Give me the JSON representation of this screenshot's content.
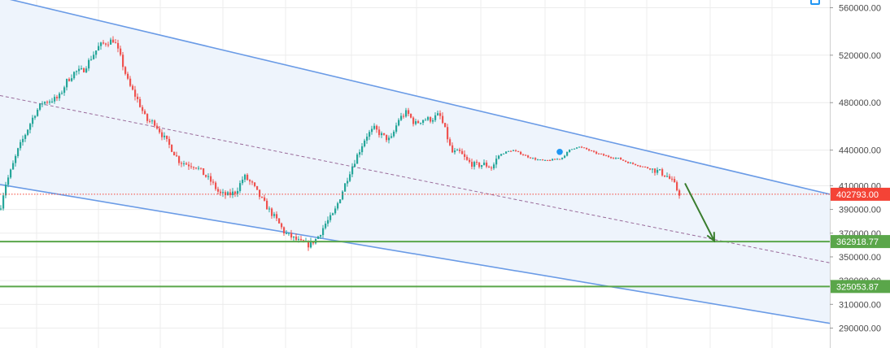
{
  "chart_data": {
    "type": "candlestick",
    "title": "",
    "xlabel": "",
    "ylabel": "",
    "ylim": [
      280000,
      575000
    ],
    "y_ticks": [
      {
        "value": 560000,
        "label": "560000.00"
      },
      {
        "value": 520000,
        "label": "520000.00"
      },
      {
        "value": 480000,
        "label": "480000.00"
      },
      {
        "value": 440000,
        "label": "440000.00"
      },
      {
        "value": 410000,
        "label": "410000.00"
      },
      {
        "value": 390000,
        "label": "390000.00"
      },
      {
        "value": 370000,
        "label": "370000.00"
      },
      {
        "value": 350000,
        "label": "350000.00"
      },
      {
        "value": 330000,
        "label": "330000.00"
      },
      {
        "value": 310000,
        "label": "310000.00"
      },
      {
        "value": 290000,
        "label": "290000.00"
      }
    ],
    "grid": true,
    "colors": {
      "up": "#26a69a",
      "down": "#ef5350",
      "channel": "#6a9be6",
      "channel_fill": "#eef4fc",
      "midline": "#9a6b9a",
      "support": "#5aa64a",
      "arrow": "#3a7d2e",
      "current": "#f44336",
      "marker": "#2196f3"
    },
    "close_path": [
      [
        0,
        390000
      ],
      [
        6,
        410000
      ],
      [
        12,
        420000
      ],
      [
        22,
        440000
      ],
      [
        32,
        455000
      ],
      [
        42,
        470000
      ],
      [
        52,
        480000
      ],
      [
        62,
        482000
      ],
      [
        72,
        484000
      ],
      [
        82,
        498000
      ],
      [
        92,
        506000
      ],
      [
        102,
        507000
      ],
      [
        112,
        518000
      ],
      [
        122,
        528000
      ],
      [
        132,
        531000
      ],
      [
        140,
        533000
      ],
      [
        148,
        518000
      ],
      [
        158,
        496000
      ],
      [
        170,
        481000
      ],
      [
        180,
        465000
      ],
      [
        190,
        463000
      ],
      [
        200,
        452000
      ],
      [
        210,
        442000
      ],
      [
        220,
        431000
      ],
      [
        230,
        428000
      ],
      [
        240,
        427000
      ],
      [
        250,
        420000
      ],
      [
        260,
        413000
      ],
      [
        270,
        403000
      ],
      [
        280,
        402000
      ],
      [
        290,
        405000
      ],
      [
        300,
        418000
      ],
      [
        310,
        411000
      ],
      [
        320,
        400000
      ],
      [
        330,
        390000
      ],
      [
        340,
        381000
      ],
      [
        350,
        370000
      ],
      [
        360,
        366000
      ],
      [
        370,
        362000
      ],
      [
        380,
        360000
      ],
      [
        390,
        366000
      ],
      [
        400,
        378000
      ],
      [
        410,
        386000
      ],
      [
        420,
        404000
      ],
      [
        430,
        422000
      ],
      [
        440,
        437000
      ],
      [
        450,
        452000
      ],
      [
        460,
        458000
      ],
      [
        470,
        452000
      ],
      [
        480,
        448000
      ],
      [
        490,
        466000
      ],
      [
        500,
        472000
      ],
      [
        510,
        462000
      ],
      [
        520,
        466000
      ],
      [
        530,
        466000
      ],
      [
        540,
        470000
      ],
      [
        548,
        455000
      ],
      [
        555,
        438000
      ],
      [
        565,
        438000
      ],
      [
        575,
        430000
      ],
      [
        585,
        427000
      ],
      [
        595,
        428000
      ],
      [
        605,
        425000
      ],
      [
        612,
        435000
      ],
      [
        620,
        438000
      ],
      [
        630,
        440000
      ],
      [
        640,
        437000
      ],
      [
        650,
        434000
      ],
      [
        660,
        432000
      ],
      [
        670,
        431000
      ],
      [
        680,
        432000
      ],
      [
        690,
        433000
      ],
      [
        700,
        440000
      ],
      [
        710,
        443000
      ],
      [
        720,
        441000
      ],
      [
        730,
        438000
      ],
      [
        740,
        436000
      ],
      [
        750,
        434000
      ],
      [
        760,
        433000
      ],
      [
        770,
        430000
      ],
      [
        780,
        428000
      ],
      [
        790,
        426000
      ],
      [
        800,
        424000
      ],
      [
        810,
        422000
      ],
      [
        820,
        418000
      ],
      [
        828,
        412000
      ],
      [
        834,
        404000
      ],
      [
        836,
        402793
      ]
    ],
    "channel": {
      "upper": [
        [
          0,
          569000
        ],
        [
          1020,
          402793
        ]
      ],
      "lower": [
        [
          0,
          411000
        ],
        [
          1020,
          294000
        ]
      ],
      "midline": [
        [
          0,
          486000
        ],
        [
          1020,
          345000
        ]
      ]
    },
    "horizontal_levels": [
      {
        "value": 362918.77,
        "label": "362918.77",
        "kind": "support"
      },
      {
        "value": 325053.87,
        "label": "325053.87",
        "kind": "support"
      }
    ],
    "current_price": {
      "value": 402793,
      "label": "402793.00"
    },
    "marker_point": [
      688,
      438500
    ],
    "arrow": {
      "from": [
        842,
        412000
      ],
      "to": [
        878,
        363500
      ]
    }
  }
}
